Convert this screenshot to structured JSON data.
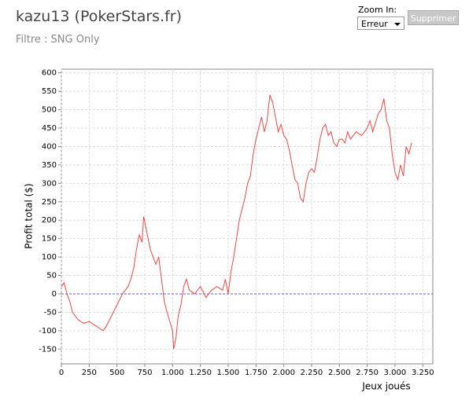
{
  "header": {
    "title": "kazu13 (PokerStars.fr)",
    "filter": "Filtre : SNG Only",
    "zoom_label": "Zoom In:",
    "zoom_value": "Erreur",
    "button": "Supprimer"
  },
  "chart_data": {
    "type": "line",
    "xlabel": "Jeux joués",
    "ylabel": "Profit total ($)",
    "color": "#f04848",
    "grid": true,
    "zero_line": true,
    "xlim": [
      0,
      3340
    ],
    "ylim": [
      -190,
      610
    ],
    "xticks": [
      0,
      250,
      500,
      750,
      {
        "value": 1000,
        "label": "1.000"
      },
      {
        "value": 1250,
        "label": "1.250"
      },
      {
        "value": 1500,
        "label": "1.500"
      },
      {
        "value": 1750,
        "label": "1.750"
      },
      {
        "value": 2000,
        "label": "2.000"
      },
      {
        "value": 2250,
        "label": "2.250"
      },
      {
        "value": 2500,
        "label": "2.500"
      },
      {
        "value": 2750,
        "label": "2.750"
      },
      {
        "value": 3000,
        "label": "3.000"
      },
      {
        "value": 3250,
        "label": "3.250"
      }
    ],
    "yticks": [
      -150,
      -100,
      -50,
      0,
      50,
      100,
      150,
      200,
      250,
      300,
      350,
      400,
      450,
      500,
      550,
      600
    ],
    "x": [
      0,
      25,
      50,
      75,
      100,
      150,
      200,
      250,
      300,
      350,
      375,
      400,
      450,
      500,
      550,
      600,
      625,
      650,
      675,
      700,
      725,
      740,
      760,
      780,
      800,
      850,
      875,
      900,
      925,
      950,
      1000,
      1010,
      1030,
      1050,
      1075,
      1100,
      1125,
      1150,
      1200,
      1250,
      1300,
      1350,
      1400,
      1450,
      1475,
      1500,
      1525,
      1550,
      1575,
      1600,
      1625,
      1650,
      1675,
      1700,
      1725,
      1750,
      1775,
      1800,
      1825,
      1850,
      1875,
      1900,
      1925,
      1950,
      1975,
      2000,
      2025,
      2050,
      2075,
      2100,
      2125,
      2150,
      2175,
      2200,
      2225,
      2250,
      2275,
      2300,
      2325,
      2350,
      2375,
      2400,
      2425,
      2450,
      2475,
      2500,
      2525,
      2550,
      2575,
      2600,
      2650,
      2700,
      2750,
      2775,
      2800,
      2850,
      2875,
      2900,
      2925,
      2950,
      2975,
      3000,
      3025,
      3050,
      3075,
      3100,
      3125,
      3150
    ],
    "values": [
      20,
      30,
      0,
      -20,
      -50,
      -70,
      -80,
      -75,
      -85,
      -95,
      -100,
      -90,
      -60,
      -30,
      0,
      20,
      40,
      70,
      120,
      160,
      140,
      210,
      180,
      150,
      120,
      80,
      100,
      40,
      -20,
      -50,
      -100,
      -150,
      -120,
      -60,
      -30,
      20,
      40,
      10,
      0,
      20,
      -10,
      10,
      20,
      10,
      40,
      0,
      60,
      100,
      150,
      200,
      230,
      260,
      300,
      320,
      380,
      420,
      450,
      480,
      440,
      470,
      540,
      520,
      480,
      440,
      460,
      430,
      420,
      390,
      350,
      310,
      300,
      260,
      250,
      300,
      330,
      340,
      330,
      370,
      420,
      450,
      460,
      430,
      440,
      410,
      400,
      420,
      420,
      410,
      440,
      420,
      440,
      430,
      450,
      470,
      440,
      490,
      500,
      530,
      470,
      450,
      380,
      330,
      310,
      350,
      320,
      400,
      380,
      410
    ]
  }
}
